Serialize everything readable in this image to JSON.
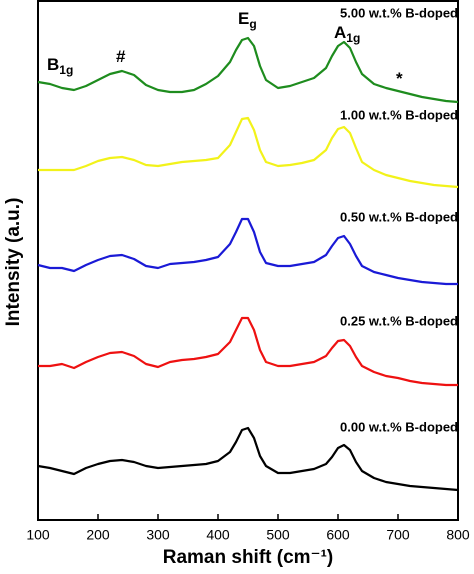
{
  "chart_data": {
    "type": "line",
    "xlabel": "Raman shift (cm⁻¹)",
    "ylabel": "Intensity (a.u.)",
    "xlim": [
      100,
      800
    ],
    "xticks": [
      100,
      200,
      300,
      400,
      500,
      600,
      700,
      800
    ],
    "ylim": [
      0,
      104
    ],
    "x": [
      100,
      120,
      140,
      160,
      180,
      200,
      220,
      240,
      260,
      280,
      300,
      320,
      340,
      360,
      380,
      400,
      420,
      430,
      440,
      450,
      460,
      470,
      480,
      500,
      520,
      540,
      560,
      580,
      590,
      600,
      610,
      620,
      630,
      640,
      660,
      680,
      700,
      720,
      740,
      760,
      780,
      800
    ],
    "series": [
      {
        "name": "0.00 w.t.% B-doped",
        "color": "#000000",
        "values": [
          10.8,
          10.4,
          9.8,
          9.2,
          10.4,
          11.2,
          11.8,
          12,
          11.6,
          10.8,
          10.4,
          10.6,
          10.8,
          11,
          11.2,
          11.8,
          13.6,
          15.6,
          18,
          18.4,
          16.4,
          12.8,
          10.8,
          9.4,
          9.4,
          9.8,
          10.2,
          11.2,
          12.6,
          14.4,
          15,
          14,
          11.6,
          9.8,
          8.4,
          7.6,
          7.2,
          6.8,
          6.6,
          6.4,
          6.2,
          6
        ]
      },
      {
        "name": "0.25 w.t.% B-doped",
        "color": "#ee1111",
        "values": [
          30.8,
          30.8,
          31.2,
          30.4,
          31.6,
          32.6,
          33.4,
          33.6,
          32.8,
          31.2,
          30.6,
          31.6,
          32,
          32.2,
          32.6,
          33.2,
          35.6,
          38,
          40.4,
          40.4,
          38,
          34,
          31.6,
          30.8,
          30.8,
          31.2,
          31.6,
          32.8,
          34.4,
          35.8,
          36,
          34.8,
          32.6,
          30.8,
          29.6,
          28.8,
          28.4,
          27.8,
          27.4,
          27.2,
          27,
          27
        ]
      },
      {
        "name": "0.50 w.t.% B-doped",
        "color": "#1a1ad6",
        "values": [
          51,
          50.4,
          50.4,
          49.8,
          51,
          52,
          52.8,
          53,
          52.2,
          50.8,
          50.4,
          51.2,
          51.4,
          51.6,
          52,
          52.6,
          55.2,
          57.6,
          60.2,
          60.2,
          57.6,
          53.6,
          51.4,
          50.8,
          50.8,
          51.2,
          51.6,
          53,
          54.8,
          56.4,
          56.8,
          55.2,
          52.8,
          50.8,
          49.6,
          49,
          48.4,
          48,
          47.6,
          47.4,
          47.2,
          47.2
        ]
      },
      {
        "name": "1.00 w.t.% B-doped",
        "color": "#f2f21a",
        "values": [
          70,
          70,
          70,
          70,
          70.8,
          71.8,
          72.4,
          72.6,
          72,
          71,
          70.8,
          71.2,
          71.6,
          71.8,
          72,
          72.4,
          75,
          77.6,
          80.2,
          80.4,
          78,
          74,
          71.6,
          70.8,
          71,
          71.4,
          72,
          74,
          76.4,
          78.2,
          78.6,
          77.4,
          74.4,
          71.6,
          70,
          69,
          68.4,
          67.8,
          67.4,
          67,
          66.8,
          66.6
        ]
      },
      {
        "name": "5.00 w.t.% B-doped",
        "color": "#1e8c1e",
        "values": [
          87.6,
          87.2,
          86.4,
          86,
          86.8,
          88,
          89.2,
          89.8,
          89,
          87,
          86,
          85.6,
          85.6,
          86,
          87.2,
          88.8,
          91.6,
          94,
          96,
          96.4,
          94.8,
          90.8,
          88,
          86.4,
          86.8,
          87.6,
          88.4,
          90.4,
          92.8,
          94.8,
          95.6,
          94.4,
          91.6,
          89.2,
          87.2,
          86.4,
          85.8,
          85.2,
          84.6,
          84.2,
          83.8,
          83.6
        ]
      }
    ],
    "annotations": [
      {
        "text": "B",
        "sub": "1g"
      },
      {
        "text": "#"
      },
      {
        "text": "E",
        "sub": "g"
      },
      {
        "text": "A",
        "sub": "1g"
      },
      {
        "text": "*"
      }
    ]
  }
}
